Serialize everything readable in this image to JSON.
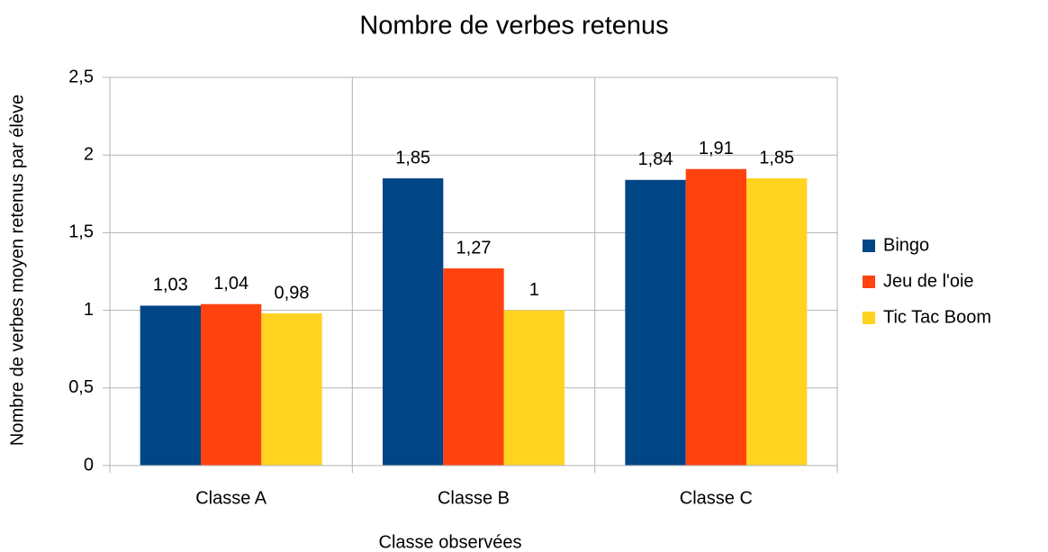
{
  "chart_data": {
    "type": "bar",
    "title": "Nombre de verbes retenus",
    "xlabel": "Classe observées",
    "ylabel": "Nombre de verbes moyen retenus par élève",
    "categories": [
      "Classe A",
      "Classe B",
      "Classe C"
    ],
    "series": [
      {
        "name": "Bingo",
        "color": "#004586",
        "values": [
          1.03,
          1.85,
          1.84
        ],
        "value_labels": [
          "1,03",
          "1,85",
          "1,84"
        ]
      },
      {
        "name": "Jeu de l'oie",
        "color": "#ff420e",
        "values": [
          1.04,
          1.27,
          1.91
        ],
        "value_labels": [
          "1,04",
          "1,27",
          "1,91"
        ]
      },
      {
        "name": "Tic Tac Boom",
        "color": "#ffd320",
        "values": [
          0.98,
          1,
          1.85
        ],
        "value_labels": [
          "0,98",
          "1",
          "1,85"
        ]
      }
    ],
    "ylim": [
      0,
      2.5
    ],
    "yticks": [
      0,
      {
        "value": 0.5,
        "label": "0,5"
      },
      1,
      {
        "value": 1.5,
        "label": "1,5"
      },
      2,
      {
        "value": 2.5,
        "label": "2,5"
      }
    ],
    "grid": true,
    "legend": "right"
  }
}
